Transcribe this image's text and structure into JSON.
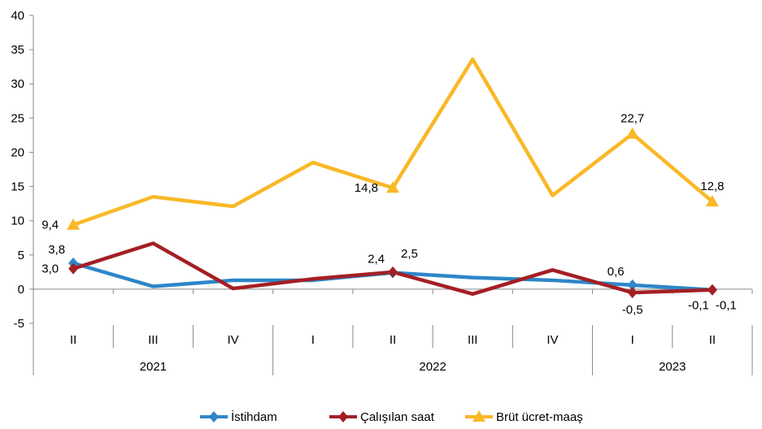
{
  "chart_data": {
    "type": "line",
    "title": "",
    "ylim": [
      -5,
      40
    ],
    "yticks": [
      -5,
      0,
      5,
      10,
      15,
      20,
      25,
      30,
      35,
      40
    ],
    "categories": [
      "II",
      "III",
      "IV",
      "I",
      "II",
      "III",
      "IV",
      "I",
      "II"
    ],
    "groups": [
      {
        "label": "2021",
        "count": 3
      },
      {
        "label": "2022",
        "count": 4
      },
      {
        "label": "2023",
        "count": 2
      }
    ],
    "legend_position": "bottom",
    "series": [
      {
        "name": "İstihdam",
        "color": "#2E86C8",
        "marker": "diamond",
        "values": [
          3.8,
          0.4,
          1.3,
          1.3,
          2.4,
          1.7,
          1.3,
          0.6,
          -0.1
        ]
      },
      {
        "name": "Çalışılan saat",
        "color": "#A31F24",
        "marker": "diamond",
        "values": [
          3.0,
          6.7,
          0.1,
          1.5,
          2.5,
          -0.7,
          2.8,
          -0.5,
          -0.1
        ]
      },
      {
        "name": "Brüt ücret-maaş",
        "color": "#F9B826",
        "marker": "triangle",
        "values": [
          9.4,
          13.5,
          12.1,
          18.5,
          14.8,
          33.6,
          13.7,
          22.7,
          12.8
        ]
      }
    ],
    "data_labels": [
      {
        "series": 2,
        "index": 0,
        "text": "9,4",
        "pos": "left"
      },
      {
        "series": 2,
        "index": 4,
        "text": "14,8",
        "pos": "left"
      },
      {
        "series": 2,
        "index": 7,
        "text": "22,7",
        "pos": "above"
      },
      {
        "series": 2,
        "index": 8,
        "text": "12,8",
        "pos": "above"
      },
      {
        "series": 0,
        "index": 0,
        "text": "3,8",
        "pos": "upleft"
      },
      {
        "series": 1,
        "index": 0,
        "text": "3,0",
        "pos": "left"
      },
      {
        "series": 0,
        "index": 4,
        "text": "2,4",
        "pos": "upleft"
      },
      {
        "series": 1,
        "index": 4,
        "text": "2,5",
        "pos": "upright"
      },
      {
        "series": 0,
        "index": 7,
        "text": "0,6",
        "pos": "upleft"
      },
      {
        "series": 1,
        "index": 7,
        "text": "-0,5",
        "pos": "below"
      },
      {
        "series": 0,
        "index": 8,
        "text": "-0,1",
        "pos": "belowleft"
      },
      {
        "series": 1,
        "index": 8,
        "text": "-0,1",
        "pos": "belowright"
      }
    ]
  }
}
